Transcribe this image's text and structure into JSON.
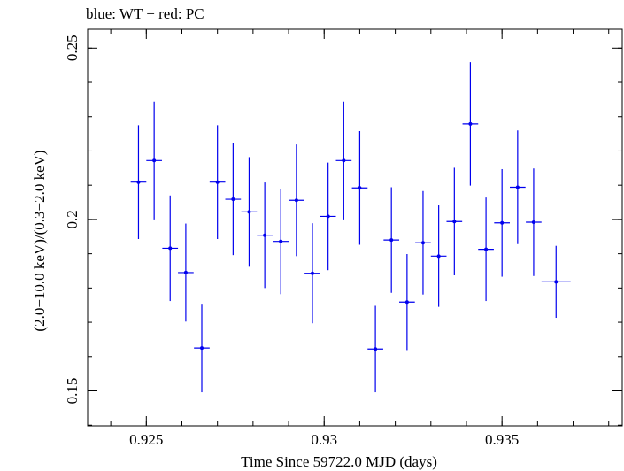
{
  "chart_data": {
    "type": "scatter",
    "title": "blue: WT − red: PC",
    "xlabel": "Time Since 59722.0 MJD (days)",
    "ylabel": "(2.0−10.0 keV)/(0.3−2.0 keV)",
    "xlim": [
      0.92335,
      0.93838
    ],
    "ylim": [
      0.1398,
      0.2555
    ],
    "x_ticks": [
      {
        "value": 0.925,
        "label": "0.925"
      },
      {
        "value": 0.93,
        "label": "0.93"
      },
      {
        "value": 0.935,
        "label": "0.935"
      }
    ],
    "y_ticks": [
      {
        "value": 0.15,
        "label": "0.15"
      },
      {
        "value": 0.2,
        "label": "0.2"
      },
      {
        "value": 0.25,
        "label": "0.25"
      }
    ],
    "grid": false,
    "series": [
      {
        "color": "#0000ee",
        "points": [
          {
            "x": 0.92478,
            "xerr": 0.00022,
            "y": 0.2109,
            "yerr": 0.0166
          },
          {
            "x": 0.92522,
            "xerr": 0.00022,
            "y": 0.2172,
            "yerr": 0.0172
          },
          {
            "x": 0.92567,
            "xerr": 0.00022,
            "y": 0.1916,
            "yerr": 0.0154
          },
          {
            "x": 0.92611,
            "xerr": 0.00022,
            "y": 0.1845,
            "yerr": 0.0143
          },
          {
            "x": 0.92656,
            "xerr": 0.00022,
            "y": 0.1625,
            "yerr": 0.0129
          },
          {
            "x": 0.927,
            "xerr": 0.00022,
            "y": 0.2109,
            "yerr": 0.0166
          },
          {
            "x": 0.92744,
            "xerr": 0.00022,
            "y": 0.2059,
            "yerr": 0.0163
          },
          {
            "x": 0.92789,
            "xerr": 0.00022,
            "y": 0.2022,
            "yerr": 0.016
          },
          {
            "x": 0.92833,
            "xerr": 0.00022,
            "y": 0.1954,
            "yerr": 0.0154
          },
          {
            "x": 0.92878,
            "xerr": 0.00022,
            "y": 0.1936,
            "yerr": 0.0154
          },
          {
            "x": 0.92922,
            "xerr": 0.00022,
            "y": 0.2056,
            "yerr": 0.0163
          },
          {
            "x": 0.92967,
            "xerr": 0.00022,
            "y": 0.1843,
            "yerr": 0.0146
          },
          {
            "x": 0.93011,
            "xerr": 0.00022,
            "y": 0.2009,
            "yerr": 0.0157
          },
          {
            "x": 0.93055,
            "xerr": 0.00022,
            "y": 0.2172,
            "yerr": 0.0172
          },
          {
            "x": 0.931,
            "xerr": 0.00022,
            "y": 0.2092,
            "yerr": 0.0166
          },
          {
            "x": 0.93144,
            "xerr": 0.00022,
            "y": 0.1622,
            "yerr": 0.0126
          },
          {
            "x": 0.93189,
            "xerr": 0.00022,
            "y": 0.194,
            "yerr": 0.0154
          },
          {
            "x": 0.93233,
            "xerr": 0.00022,
            "y": 0.1759,
            "yerr": 0.014
          },
          {
            "x": 0.93278,
            "xerr": 0.00022,
            "y": 0.1932,
            "yerr": 0.0151
          },
          {
            "x": 0.93322,
            "xerr": 0.00022,
            "y": 0.1893,
            "yerr": 0.0148
          },
          {
            "x": 0.93366,
            "xerr": 0.00022,
            "y": 0.1994,
            "yerr": 0.0157
          },
          {
            "x": 0.93411,
            "xerr": 0.00022,
            "y": 0.2279,
            "yerr": 0.018
          },
          {
            "x": 0.93455,
            "xerr": 0.00022,
            "y": 0.1913,
            "yerr": 0.0151
          },
          {
            "x": 0.935,
            "xerr": 0.00022,
            "y": 0.199,
            "yerr": 0.0157
          },
          {
            "x": 0.93544,
            "xerr": 0.00022,
            "y": 0.2094,
            "yerr": 0.0166
          },
          {
            "x": 0.93589,
            "xerr": 0.00022,
            "y": 0.1992,
            "yerr": 0.0157
          },
          {
            "x": 0.93652,
            "xerr": 0.00041,
            "y": 0.1818,
            "yerr": 0.0105
          }
        ]
      }
    ]
  }
}
